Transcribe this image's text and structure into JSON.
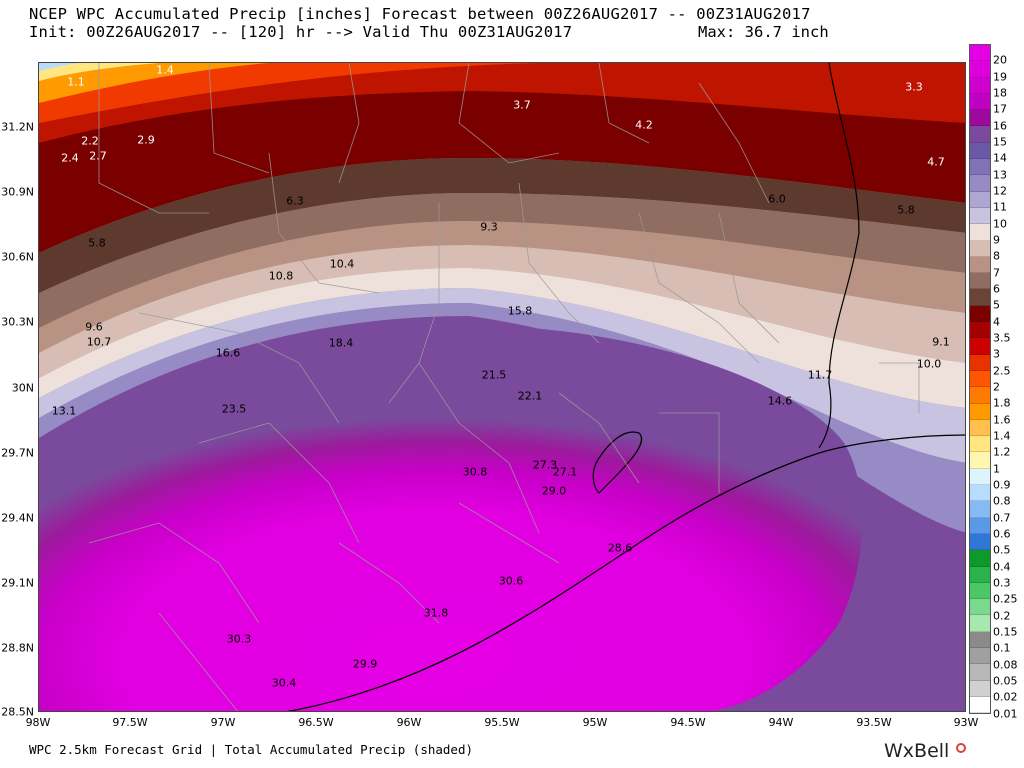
{
  "header": {
    "line1": "NCEP WPC Accumulated Precip [inches] Forecast between 00Z26AUG2017 -- 00Z31AUG2017",
    "line2": "Init: 00Z26AUG2017 -- [120] hr --> Valid Thu 00Z31AUG2017",
    "max": "Max: 36.7 inch"
  },
  "footer": "WPC 2.5km Forecast Grid | Total Accumulated Precip (shaded)",
  "logo": "WxBell",
  "map": {
    "lat_labels": [
      "31.2N",
      "30.9N",
      "30.6N",
      "30.3N",
      "30N",
      "29.7N",
      "29.4N",
      "29.1N",
      "28.8N",
      "28.5N"
    ],
    "lon_labels": [
      "98W",
      "97.5W",
      "97W",
      "96.5W",
      "96W",
      "95.5W",
      "95W",
      "94.5W",
      "94W",
      "93.5W",
      "93W"
    ],
    "values": [
      {
        "text": "1.1"
      },
      {
        "text": "1.4"
      },
      {
        "text": "2.2"
      },
      {
        "text": "2.9"
      },
      {
        "text": "2.4"
      },
      {
        "text": "2.7"
      },
      {
        "text": "3.7"
      },
      {
        "text": "4.2"
      },
      {
        "text": "3.3"
      },
      {
        "text": "4.7"
      },
      {
        "text": "6.3"
      },
      {
        "text": "6.0"
      },
      {
        "text": "5.8"
      },
      {
        "text": "5.8"
      },
      {
        "text": "9.3"
      },
      {
        "text": "10.8"
      },
      {
        "text": "10.4"
      },
      {
        "text": "9.6"
      },
      {
        "text": "10.7"
      },
      {
        "text": "15.8"
      },
      {
        "text": "16.6"
      },
      {
        "text": "18.4"
      },
      {
        "text": "9.1"
      },
      {
        "text": "10.0"
      },
      {
        "text": "11.7"
      },
      {
        "text": "14.6"
      },
      {
        "text": "21.5"
      },
      {
        "text": "22.1"
      },
      {
        "text": "13.1"
      },
      {
        "text": "23.5"
      },
      {
        "text": "27.3"
      },
      {
        "text": "27.1"
      },
      {
        "text": "30.8"
      },
      {
        "text": "29.0"
      },
      {
        "text": "28.6"
      },
      {
        "text": "30.6"
      },
      {
        "text": "31.8"
      },
      {
        "text": "30.3"
      },
      {
        "text": "29.9"
      },
      {
        "text": "30.4"
      }
    ]
  },
  "colorbar": {
    "labels": [
      "20",
      "19",
      "18",
      "17",
      "16",
      "15",
      "14",
      "13",
      "12",
      "11",
      "10",
      "9",
      "8",
      "7",
      "6",
      "5",
      "4",
      "3.5",
      "3",
      "2.5",
      "2",
      "1.8",
      "1.6",
      "1.4",
      "1.2",
      "1",
      "0.9",
      "0.8",
      "0.7",
      "0.6",
      "0.5",
      "0.4",
      "0.3",
      "0.25",
      "0.2",
      "0.15",
      "0.1",
      "0.08",
      "0.05",
      "0.02",
      "0.01"
    ],
    "colors": [
      "#e600e6",
      "#dd00dd",
      "#cf00cf",
      "#c000c0",
      "#9c0a9c",
      "#7a4a9c",
      "#6a5aa6",
      "#7f72b6",
      "#968bc4",
      "#afa7d3",
      "#c9c3e2",
      "#eee0da",
      "#d7bdb3",
      "#b89383",
      "#8f6d60",
      "#6a4535",
      "#7a0000",
      "#a30000",
      "#cc0000",
      "#e63300",
      "#ff5500",
      "#ff7a00",
      "#ff9a00",
      "#ffc04d",
      "#ffe680",
      "#fff6b0",
      "#ddf4ff",
      "#b8dcff",
      "#86baf5",
      "#5a99e6",
      "#2f78d6",
      "#0d9a2b",
      "#29b34a",
      "#4cc766",
      "#7ad98c",
      "#a6e8b0",
      "#8a8a8a",
      "#a0a0a0",
      "#b8b8b8",
      "#d0d0d0",
      "#ffffff"
    ]
  }
}
